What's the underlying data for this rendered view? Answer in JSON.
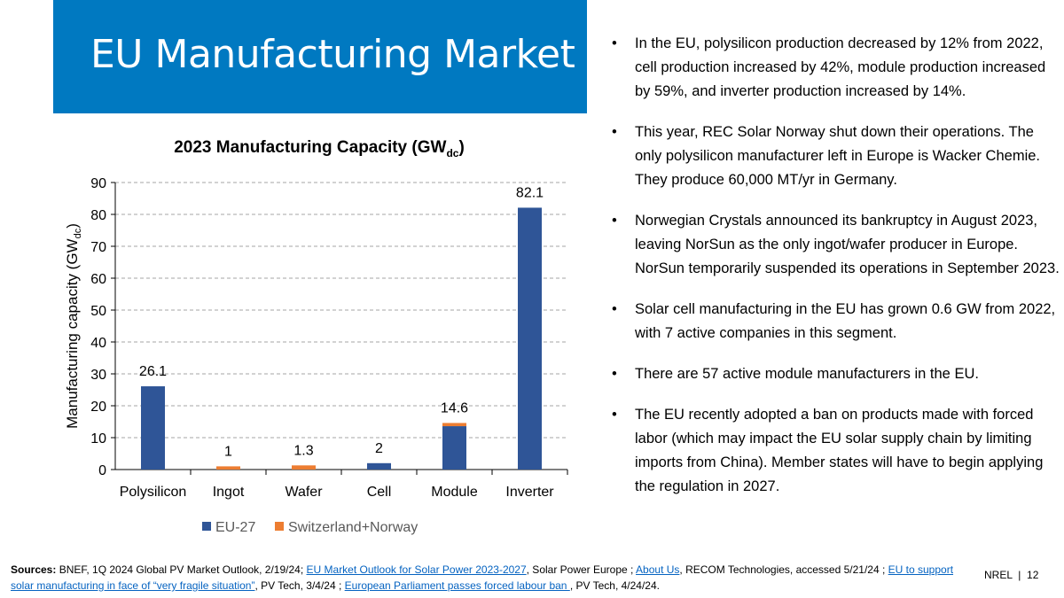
{
  "title": "EU Manufacturing Market",
  "chart_data": {
    "type": "bar",
    "stacked": true,
    "title": "2023 Manufacturing Capacity (GW",
    "title_sub": "dc",
    "ylabel": "Manufacturing capacity (GW",
    "ylabel_sub": "dc",
    "ylim": [
      0,
      90
    ],
    "yticks": [
      "0",
      "10",
      "20",
      "30",
      "40",
      "50",
      "60",
      "70",
      "80",
      "90"
    ],
    "categories": [
      "Polysilicon",
      "Ingot",
      "Wafer",
      "Cell",
      "Module",
      "Inverter"
    ],
    "series": [
      {
        "name": "EU-27",
        "color": "#2f5597",
        "values": [
          26.1,
          0,
          0,
          2,
          13.6,
          82.1
        ]
      },
      {
        "name": "Switzerland+Norway",
        "color": "#ed7d31",
        "values": [
          0,
          1,
          1.3,
          0,
          1.0,
          0
        ]
      }
    ],
    "data_labels": [
      "26.1",
      "1",
      "1.3",
      "2",
      "14.6",
      "82.1"
    ],
    "legend": "bottom",
    "grid": true
  },
  "bullets": [
    "In the EU, polysilicon production decreased by 12% from 2022, cell production increased by 42%, module production increased by 59%, and inverter production increased by 14%.",
    "This year, REC Solar Norway shut down their operations. The only polysilicon manufacturer left in Europe is Wacker Chemie. They produce 60,000 MT/yr in Germany.",
    "Norwegian Crystals announced its bankruptcy in August 2023, leaving NorSun as the only ingot/wafer producer in Europe. NorSun temporarily suspended its operations in September 2023.",
    "Solar cell manufacturing in the EU has grown 0.6 GW from 2022, with 7 active companies in this segment.",
    "There are 57 active module manufacturers in the EU.",
    "The EU recently adopted a ban on products made with forced labor (which may impact the EU solar supply chain by limiting imports from China). Member states will have to begin applying the regulation in 2027."
  ],
  "footer": {
    "label": "Sources:",
    "t1": " BNEF, 1Q 2024 Global PV Market Outlook, 2/19/24; ",
    "l1": "EU Market Outlook for Solar Power 2023-2027",
    "t2": ", Solar Power Europe ; ",
    "l2": "About Us",
    "t3": ", RECOM Technologies, accessed 5/21/24 ; ",
    "l3": "EU to support solar manufacturing in face of “very fragile situation”",
    "t4": ", PV Tech, 3/4/24 ; ",
    "l4": "European Parliament passes forced labour ban ",
    "t5": ", PV Tech, 4/24/24."
  },
  "page": "NREL  |  12"
}
